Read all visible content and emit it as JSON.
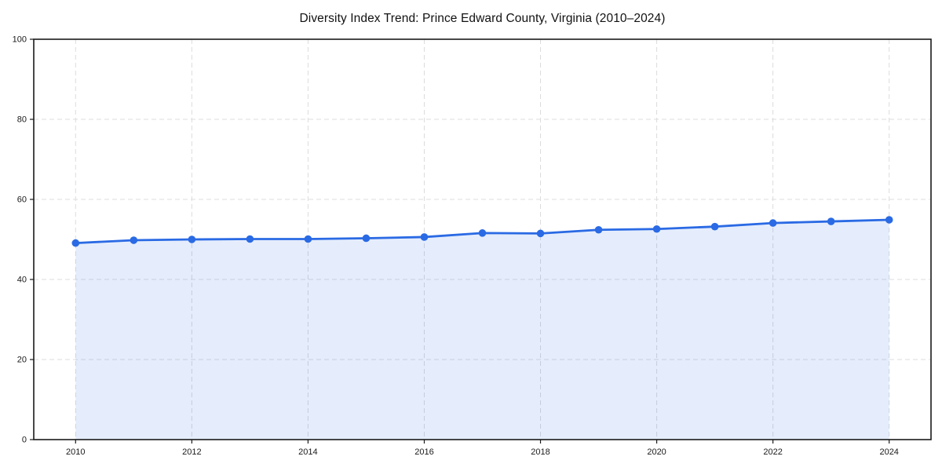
{
  "page": {
    "background": "#ffffff"
  },
  "chart_data": {
    "type": "line",
    "title": "Diversity Index Trend: Prince Edward County, Virginia (2010–2024)",
    "x": [
      2010,
      2011,
      2012,
      2013,
      2014,
      2015,
      2016,
      2017,
      2018,
      2019,
      2020,
      2021,
      2022,
      2023,
      2024
    ],
    "series": [
      {
        "name": "Diversity Index",
        "values": [
          49.1,
          49.8,
          50.0,
          50.1,
          50.1,
          50.3,
          50.6,
          51.6,
          51.5,
          52.4,
          52.6,
          53.2,
          54.1,
          54.5,
          54.9
        ]
      }
    ],
    "xlabel": "",
    "ylabel": "",
    "xlim": [
      2009.28,
      2024.72
    ],
    "ylim": [
      0,
      100
    ],
    "xticks": [
      2010,
      2012,
      2014,
      2016,
      2018,
      2020,
      2022,
      2024
    ],
    "yticks": [
      0,
      20,
      40,
      60,
      80,
      100
    ],
    "grid": "dashed-both",
    "legend": "none",
    "area_fill": true,
    "markers": true,
    "colors": {
      "line": "#2a6ae4",
      "marker": "#2a6ae4",
      "fill": "#2a6ae4",
      "fill_opacity": 0.12,
      "grid": "#dcdcdc",
      "spine": "#1a1a1a",
      "tick_label": "#1a1a1a",
      "title": "#111111",
      "background": "#ffffff"
    }
  }
}
